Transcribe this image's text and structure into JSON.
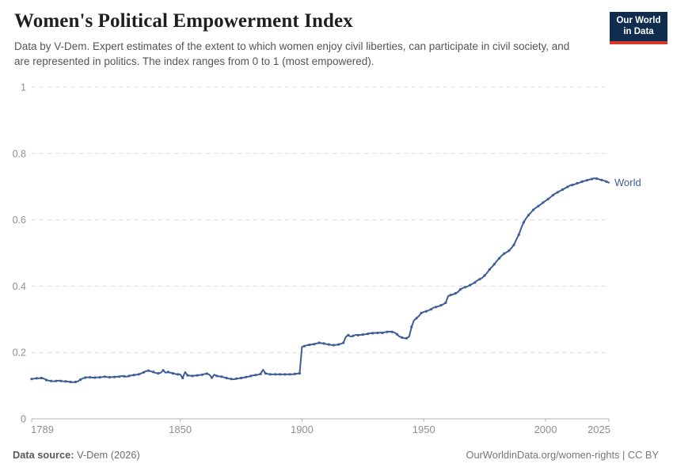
{
  "header": {
    "title": "Women's Political Empowerment Index",
    "subtitle": "Data by V-Dem. Expert estimates of the extent to which women enjoy civil liberties, can participate in civil society, and are represented in politics. The index ranges from 0 to 1 (most empowered).",
    "logo": {
      "line1": "Our World",
      "line2": "in Data",
      "bg_color": "#102d50",
      "stripe_color": "#d7382d"
    }
  },
  "footer": {
    "source_label": "Data source:",
    "source_value": " V-Dem (2026)",
    "credit": "OurWorldinData.org/women-rights | CC BY"
  },
  "chart_data": {
    "type": "line",
    "title": "Women's Political Empowerment Index",
    "xlabel": "",
    "ylabel": "",
    "xlim": [
      1789,
      2026
    ],
    "ylim": [
      0,
      1
    ],
    "x_ticks": [
      1789,
      1850,
      1900,
      1950,
      2000,
      2025
    ],
    "y_ticks": [
      0,
      0.2,
      0.4,
      0.6,
      0.8,
      1
    ],
    "y_tick_labels": [
      "0",
      "0.2",
      "0.4",
      "0.6",
      "0.8",
      "1"
    ],
    "grid": "dashed-horizontal",
    "legend_position": "end-of-line",
    "line_color": "#3f5e96",
    "axis_color": "#b3b3b3",
    "tick_label_color": "#8f8f8f",
    "grid_color": "#dcdcdc",
    "series": [
      {
        "name": "World",
        "start_year": 1789,
        "end_year": 2026,
        "values": [
          0.12,
          0.121,
          0.122,
          0.122,
          0.123,
          0.121,
          0.117,
          0.115,
          0.114,
          0.113,
          0.114,
          0.115,
          0.114,
          0.113,
          0.113,
          0.112,
          0.111,
          0.11,
          0.111,
          0.113,
          0.118,
          0.122,
          0.124,
          0.125,
          0.125,
          0.124,
          0.124,
          0.125,
          0.125,
          0.126,
          0.127,
          0.126,
          0.125,
          0.126,
          0.126,
          0.127,
          0.127,
          0.129,
          0.128,
          0.127,
          0.129,
          0.131,
          0.132,
          0.133,
          0.134,
          0.137,
          0.14,
          0.144,
          0.145,
          0.143,
          0.141,
          0.138,
          0.137,
          0.139,
          0.146,
          0.139,
          0.141,
          0.139,
          0.137,
          0.135,
          0.134,
          0.134,
          0.123,
          0.141,
          0.131,
          0.13,
          0.129,
          0.13,
          0.131,
          0.132,
          0.133,
          0.135,
          0.136,
          0.133,
          0.124,
          0.133,
          0.129,
          0.128,
          0.127,
          0.125,
          0.123,
          0.121,
          0.12,
          0.119,
          0.121,
          0.122,
          0.123,
          0.124,
          0.126,
          0.127,
          0.129,
          0.131,
          0.132,
          0.133,
          0.135,
          0.148,
          0.137,
          0.135,
          0.134,
          0.134,
          0.134,
          0.134,
          0.134,
          0.134,
          0.134,
          0.134,
          0.134,
          0.134,
          0.135,
          0.136,
          0.137,
          0.217,
          0.219,
          0.222,
          0.223,
          0.224,
          0.225,
          0.227,
          0.229,
          0.228,
          0.227,
          0.225,
          0.224,
          0.223,
          0.222,
          0.223,
          0.224,
          0.226,
          0.229,
          0.247,
          0.252,
          0.248,
          0.25,
          0.253,
          0.252,
          0.253,
          0.254,
          0.255,
          0.256,
          0.258,
          0.258,
          0.259,
          0.259,
          0.26,
          0.259,
          0.261,
          0.262,
          0.263,
          0.262,
          0.26,
          0.255,
          0.248,
          0.245,
          0.243,
          0.243,
          0.248,
          0.277,
          0.297,
          0.303,
          0.31,
          0.319,
          0.322,
          0.324,
          0.327,
          0.33,
          0.335,
          0.337,
          0.339,
          0.342,
          0.345,
          0.35,
          0.37,
          0.373,
          0.375,
          0.378,
          0.382,
          0.39,
          0.394,
          0.397,
          0.399,
          0.403,
          0.407,
          0.411,
          0.417,
          0.421,
          0.425,
          0.432,
          0.44,
          0.45,
          0.458,
          0.466,
          0.476,
          0.484,
          0.492,
          0.498,
          0.502,
          0.507,
          0.515,
          0.524,
          0.54,
          0.555,
          0.575,
          0.592,
          0.604,
          0.614,
          0.622,
          0.63,
          0.636,
          0.641,
          0.646,
          0.652,
          0.657,
          0.662,
          0.668,
          0.674,
          0.679,
          0.683,
          0.687,
          0.691,
          0.695,
          0.699,
          0.703,
          0.705,
          0.707,
          0.71,
          0.712,
          0.715,
          0.717,
          0.719,
          0.721,
          0.723,
          0.725,
          0.724,
          0.722,
          0.72,
          0.718,
          0.715,
          0.712
        ]
      }
    ]
  }
}
